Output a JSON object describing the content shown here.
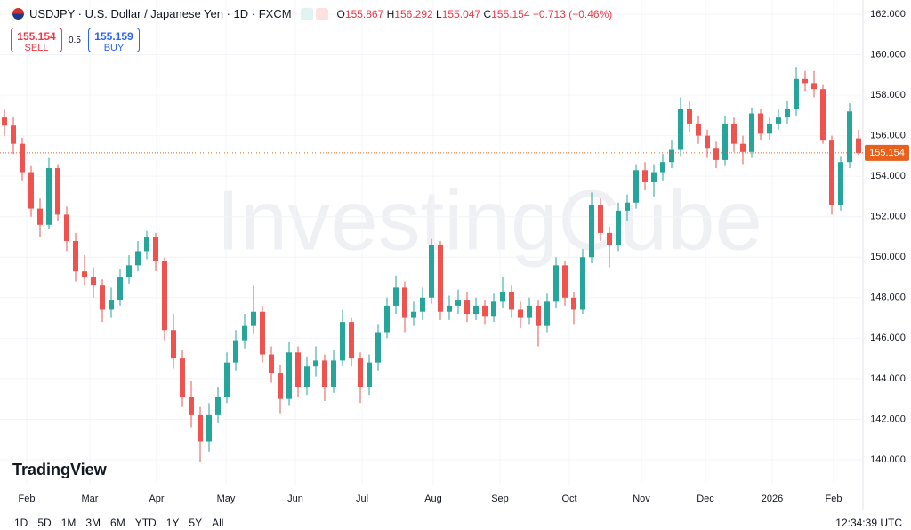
{
  "header": {
    "symbol": "USDJPY · U.S. Dollar / Japanese Yen · 1D · FXCM",
    "ohlc": {
      "o_label": "O",
      "open": 155.867,
      "h_label": "H",
      "high": 156.292,
      "l_label": "L",
      "low": 155.047,
      "c_label": "C",
      "close": 155.154,
      "change": "−0.713 (−0.46%)"
    },
    "sell_price": "155.154",
    "sell_label": "SELL",
    "spread": "0.5",
    "buy_price": "155.159",
    "buy_label": "BUY"
  },
  "chart_data": {
    "type": "candlestick",
    "watermark": "InvestingCube",
    "logo": "TradingView",
    "series": {
      "open": [
        156.9,
        156.5,
        155.6,
        154.2,
        152.4,
        151.6,
        154.4,
        152.1,
        150.8,
        149.3,
        149.0,
        148.6,
        147.4,
        147.9,
        149.0,
        149.6,
        150.3,
        151.0,
        149.8,
        146.4,
        145.0,
        143.1,
        142.2,
        140.9,
        142.2,
        143.1,
        144.8,
        145.9,
        146.6,
        147.3,
        145.2,
        144.3,
        143.0,
        145.3,
        143.6,
        144.6,
        144.9,
        143.6,
        144.9,
        146.8,
        145.0,
        143.6,
        144.8,
        146.3,
        147.6,
        148.5,
        147.0,
        147.3,
        148.0,
        150.6,
        147.3,
        147.6,
        147.9,
        147.2,
        147.6,
        147.1,
        147.8,
        148.3,
        147.4,
        147.0,
        147.6,
        146.6,
        147.8,
        149.6,
        148.0,
        147.4,
        150.0,
        152.6,
        151.2,
        150.6,
        152.3,
        152.7,
        154.3,
        153.7,
        154.2,
        154.7,
        155.3,
        157.3,
        156.6,
        156.0,
        155.4,
        154.8,
        156.6,
        155.6,
        155.2,
        157.1,
        156.1,
        156.6,
        156.9,
        157.3,
        158.8,
        158.6,
        158.3,
        155.8,
        152.6,
        154.7,
        155.867
      ],
      "high": [
        157.3,
        156.9,
        155.9,
        154.5,
        152.9,
        154.9,
        154.6,
        152.5,
        151.2,
        150.1,
        149.5,
        148.9,
        148.5,
        149.4,
        150.1,
        150.8,
        151.3,
        151.2,
        150.0,
        147.2,
        145.4,
        143.9,
        142.6,
        142.8,
        143.6,
        145.3,
        146.4,
        147.2,
        148.6,
        147.6,
        145.6,
        144.7,
        145.8,
        145.6,
        145.1,
        145.6,
        145.2,
        145.4,
        147.4,
        147.0,
        145.3,
        145.2,
        146.7,
        148.0,
        149.1,
        148.8,
        147.8,
        148.5,
        150.9,
        150.8,
        148.1,
        148.4,
        148.3,
        148.0,
        147.9,
        148.2,
        149.0,
        148.6,
        147.8,
        148.0,
        147.9,
        148.2,
        150.0,
        149.8,
        148.3,
        150.4,
        153.2,
        152.9,
        151.5,
        152.7,
        153.1,
        154.6,
        154.7,
        154.6,
        155.1,
        155.8,
        157.9,
        157.7,
        157.0,
        156.3,
        155.7,
        157.0,
        156.9,
        156.0,
        157.4,
        157.3,
        156.9,
        157.3,
        157.7,
        159.4,
        159.2,
        159.2,
        158.5,
        156.0,
        155.0,
        157.6,
        156.292
      ],
      "low": [
        156.0,
        155.1,
        153.8,
        152.0,
        151.0,
        151.4,
        151.8,
        150.3,
        148.8,
        148.6,
        148.0,
        146.8,
        147.0,
        147.6,
        148.7,
        149.3,
        149.9,
        149.3,
        145.9,
        144.5,
        142.6,
        141.6,
        139.9,
        140.4,
        141.8,
        142.8,
        144.4,
        145.5,
        146.2,
        144.8,
        143.8,
        142.3,
        142.7,
        143.1,
        143.2,
        144.1,
        142.9,
        143.3,
        144.6,
        144.6,
        142.8,
        143.2,
        144.4,
        146.0,
        147.2,
        146.3,
        146.6,
        146.9,
        147.7,
        146.9,
        146.9,
        147.2,
        146.8,
        146.9,
        146.7,
        146.8,
        147.5,
        147.0,
        146.5,
        146.7,
        145.6,
        146.3,
        147.5,
        147.6,
        146.7,
        147.2,
        149.7,
        150.8,
        149.5,
        150.3,
        151.8,
        152.4,
        153.3,
        153.0,
        153.8,
        154.4,
        155.0,
        156.2,
        155.6,
        154.9,
        154.4,
        154.5,
        155.2,
        154.6,
        154.9,
        155.8,
        155.8,
        156.3,
        156.6,
        157.0,
        158.2,
        157.9,
        155.6,
        152.1,
        152.3,
        154.4,
        155.047
      ],
      "close": [
        156.5,
        155.6,
        154.2,
        152.4,
        151.6,
        154.4,
        152.1,
        150.8,
        149.3,
        149.0,
        148.6,
        147.4,
        147.9,
        149.0,
        149.6,
        150.3,
        151.0,
        149.8,
        146.4,
        145.0,
        143.1,
        142.2,
        140.9,
        142.2,
        143.1,
        144.8,
        145.9,
        146.6,
        147.3,
        145.2,
        144.3,
        143.0,
        145.3,
        143.6,
        144.6,
        144.9,
        143.6,
        144.9,
        146.8,
        145.0,
        143.6,
        144.8,
        146.3,
        147.6,
        148.5,
        147.0,
        147.3,
        148.0,
        150.6,
        147.3,
        147.6,
        147.9,
        147.2,
        147.6,
        147.1,
        147.8,
        148.3,
        147.4,
        147.0,
        147.6,
        146.6,
        147.8,
        149.6,
        148.0,
        147.4,
        150.0,
        152.6,
        151.2,
        150.6,
        152.3,
        152.7,
        154.3,
        153.7,
        154.2,
        154.7,
        155.3,
        157.3,
        156.6,
        156.0,
        155.4,
        154.8,
        156.6,
        155.6,
        155.2,
        157.1,
        156.1,
        156.6,
        156.9,
        157.3,
        158.8,
        158.6,
        158.3,
        155.8,
        152.6,
        154.7,
        157.2,
        155.154
      ]
    },
    "up_color": "#26a69a",
    "down_color": "#ef5350",
    "last_color": "#e8601c",
    "last_price": {
      "value": 155.154,
      "label": "155.154"
    },
    "xlim": [
      -0.5,
      96.5
    ],
    "xticks": [
      {
        "value": 2.5,
        "label": "Feb"
      },
      {
        "value": 9.6,
        "label": "Mar"
      },
      {
        "value": 17.1,
        "label": "Apr"
      },
      {
        "value": 24.9,
        "label": "May"
      },
      {
        "value": 32.7,
        "label": "Jun"
      },
      {
        "value": 40.2,
        "label": "Jul"
      },
      {
        "value": 48.2,
        "label": "Aug"
      },
      {
        "value": 55.7,
        "label": "Sep"
      },
      {
        "value": 63.5,
        "label": "Oct"
      },
      {
        "value": 71.6,
        "label": "Nov"
      },
      {
        "value": 78.8,
        "label": "Dec"
      },
      {
        "value": 86.3,
        "label": "2026"
      },
      {
        "value": 93.2,
        "label": "Feb"
      }
    ],
    "ylim": [
      138.77,
      162.7
    ],
    "yticks": [
      {
        "value": 140,
        "label": "140.000"
      },
      {
        "value": 142,
        "label": "142.000"
      },
      {
        "value": 144,
        "label": "144.000"
      },
      {
        "value": 146,
        "label": "146.000"
      },
      {
        "value": 148,
        "label": "148.000"
      },
      {
        "value": 150,
        "label": "150.000"
      },
      {
        "value": 152,
        "label": "152.000"
      },
      {
        "value": 154,
        "label": "154.000"
      },
      {
        "value": 156,
        "label": "156.000"
      },
      {
        "value": 158,
        "label": "158.000"
      },
      {
        "value": 160,
        "label": "160.000"
      },
      {
        "value": 162,
        "label": "162.000"
      }
    ],
    "grid": true
  },
  "toolbar": {
    "ranges": [
      "1D",
      "5D",
      "1M",
      "3M",
      "6M",
      "YTD",
      "1Y",
      "5Y",
      "All"
    ],
    "time": "12:34:39 UTC"
  }
}
